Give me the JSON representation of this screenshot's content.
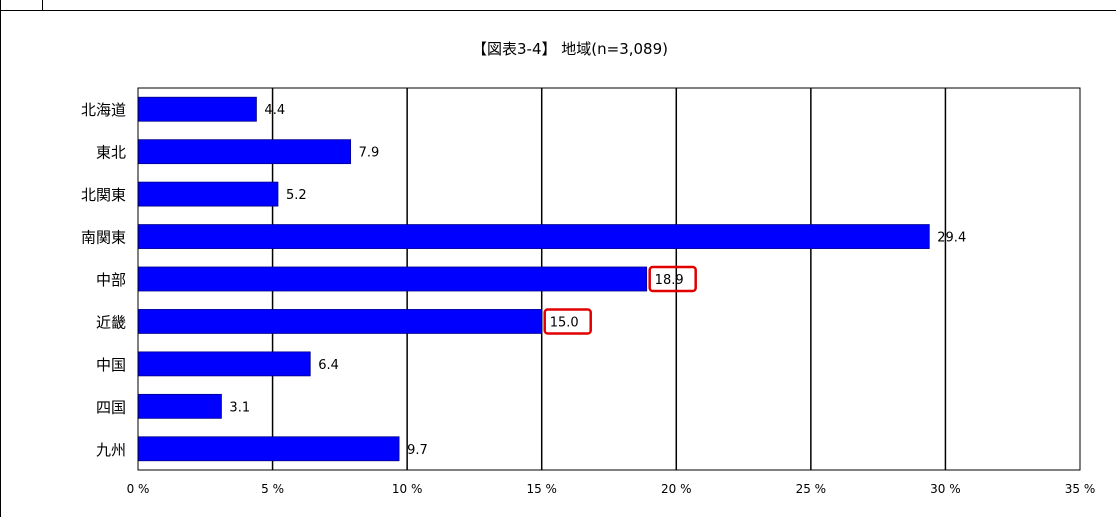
{
  "chart_data": {
    "type": "bar",
    "orientation": "horizontal",
    "title": "【図表3-4】 地域(n=3,089)",
    "categories": [
      "北海道",
      "東北",
      "北関東",
      "南関東",
      "中部",
      "近畿",
      "中国",
      "四国",
      "九州"
    ],
    "values": [
      4.4,
      7.9,
      5.2,
      29.4,
      18.9,
      15.0,
      6.4,
      3.1,
      9.7
    ],
    "value_labels": [
      "4.4",
      "7.9",
      "5.2",
      "29.4",
      "18.9",
      "15.0",
      "6.4",
      "3.1",
      "9.7"
    ],
    "xlim": [
      0,
      35
    ],
    "xticks": [
      0,
      5,
      10,
      15,
      20,
      25,
      30,
      35
    ],
    "xtick_labels": [
      "0 %",
      "5 %",
      "10 %",
      "15 %",
      "20 %",
      "25 %",
      "30 %",
      "35 %"
    ],
    "xlabel": "",
    "ylabel": "",
    "grid": true,
    "highlighted_categories": [
      "中部",
      "近畿"
    ],
    "colors": {
      "bar": "#0000ff",
      "highlight_box": "#e00000",
      "grid": "#000000"
    }
  }
}
